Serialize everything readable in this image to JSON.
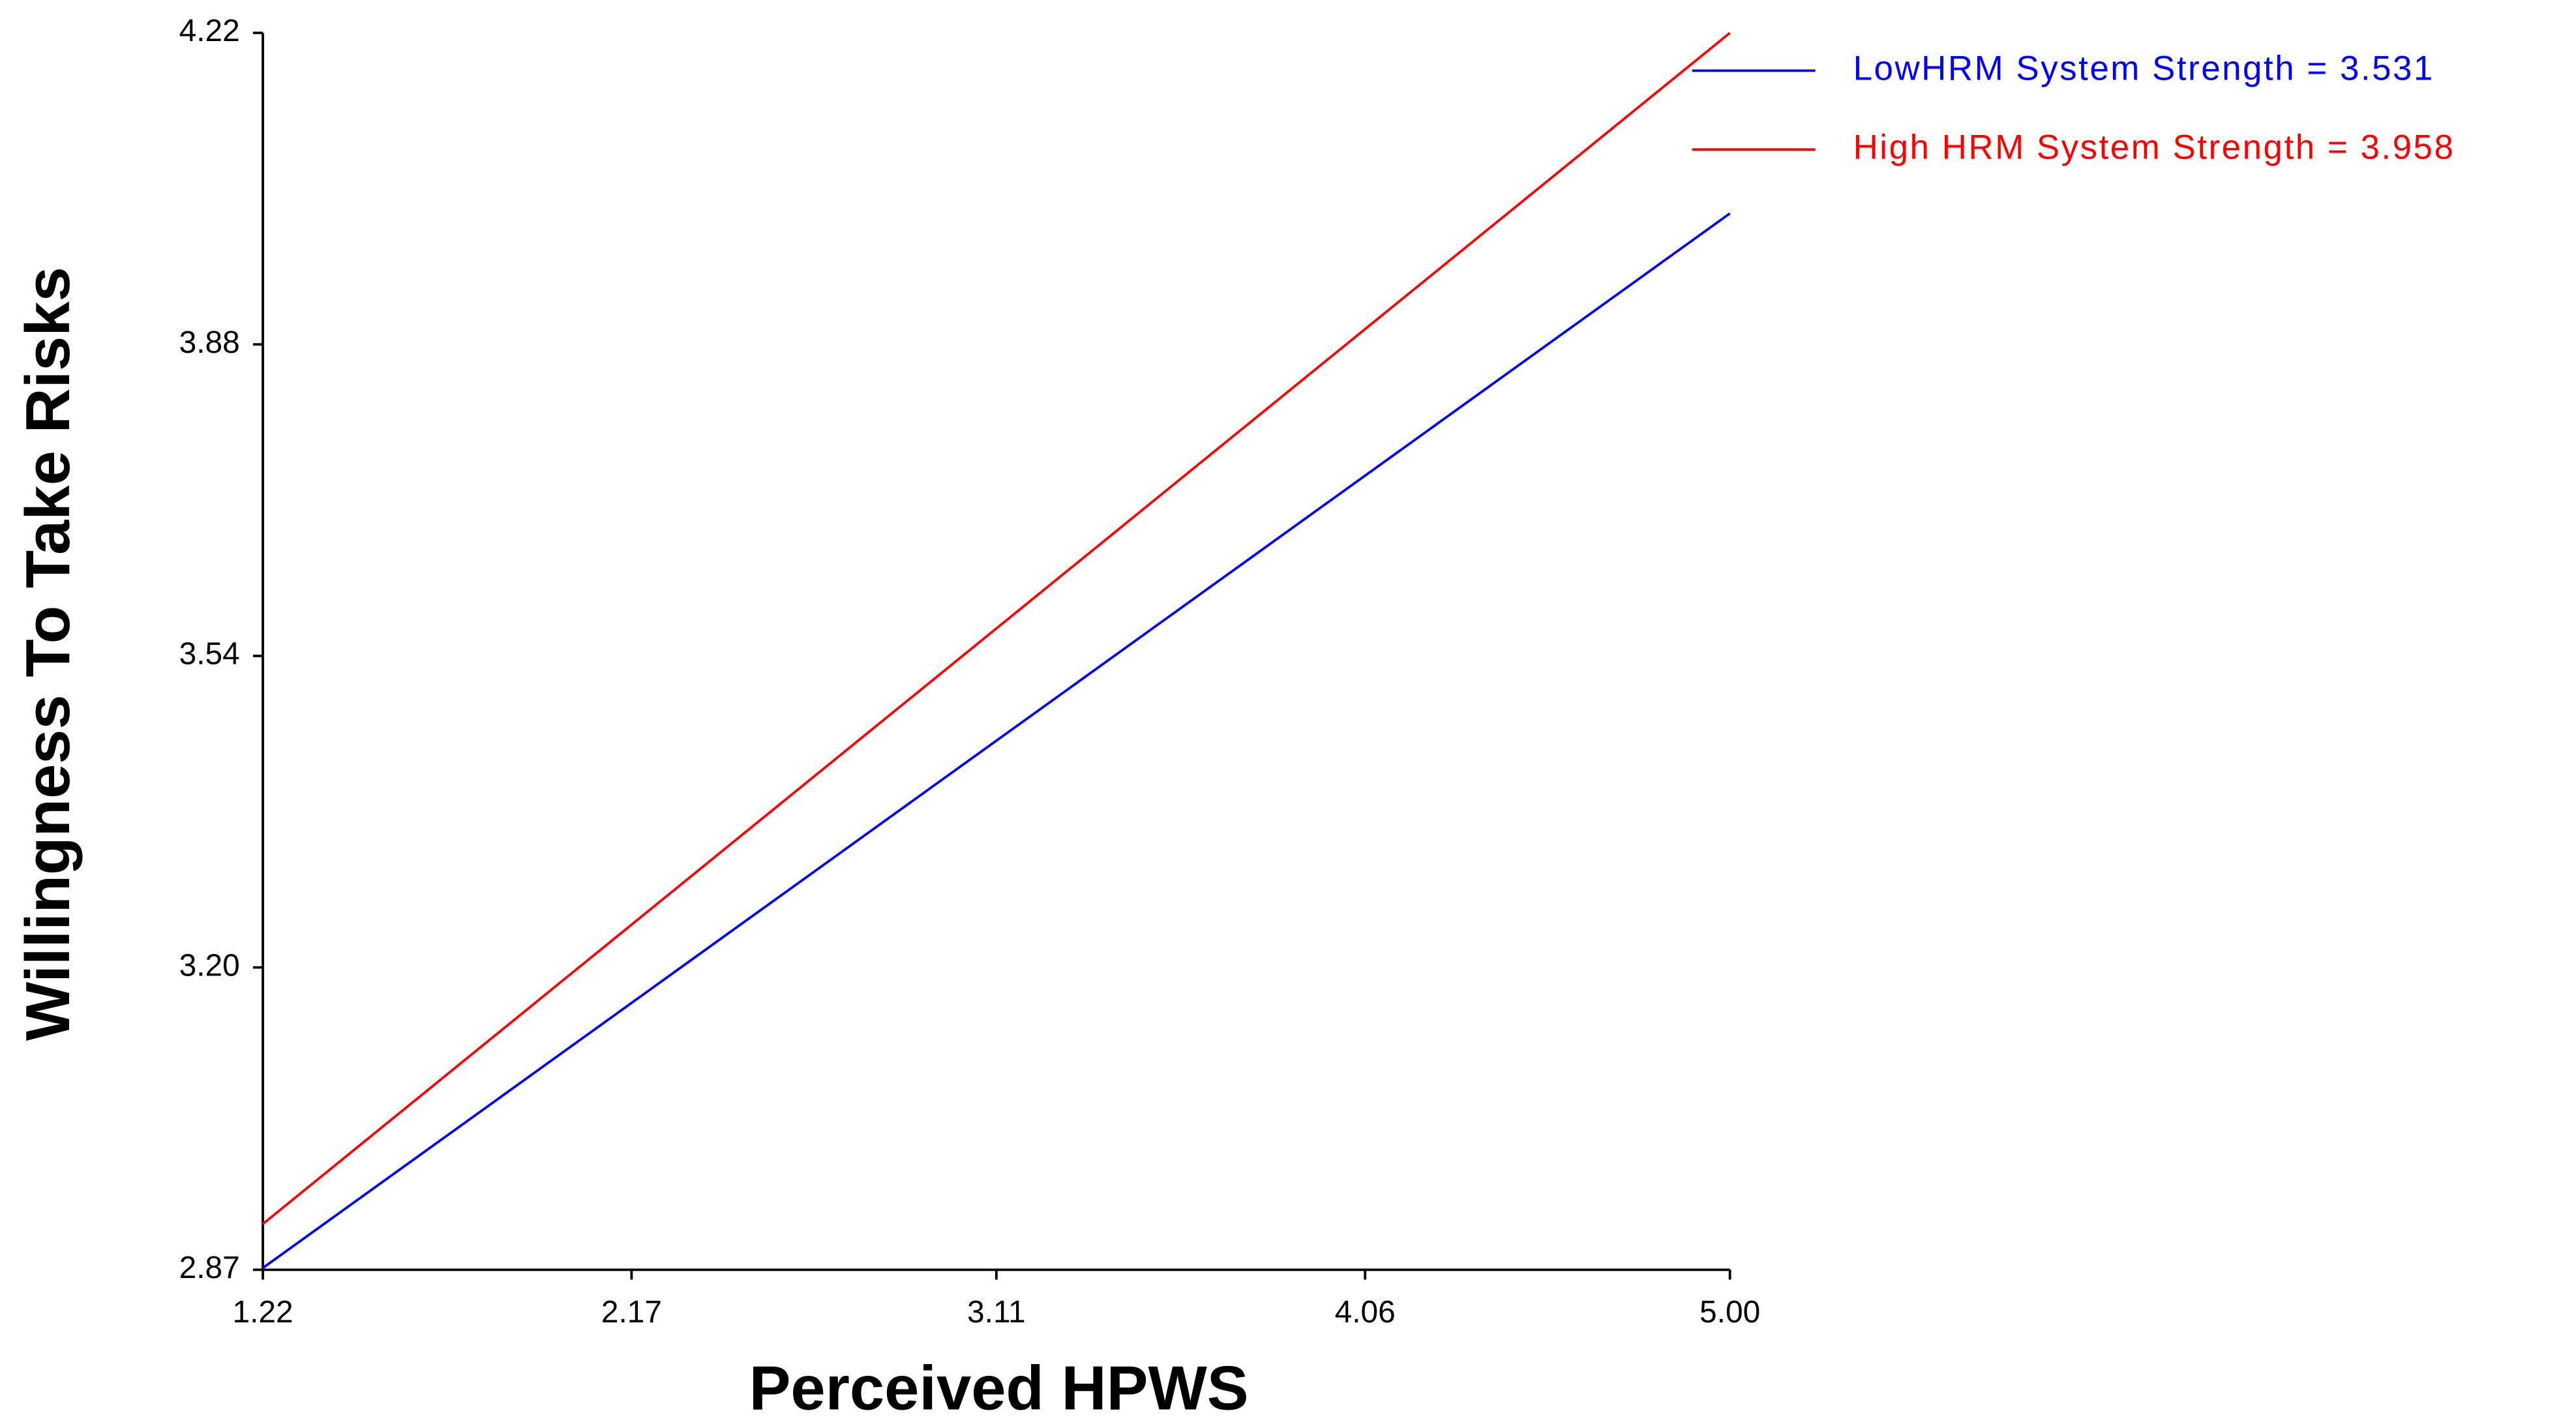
{
  "chart_data": {
    "type": "line",
    "x_label": "Perceived HPWS",
    "y_label": "Willingness To Take Risks",
    "x": [
      1.22,
      5.0
    ],
    "series": [
      {
        "name": "LowHRM System Strength = 3.531",
        "color": "#0000ff",
        "values": [
          2.872,
          4.023
        ]
      },
      {
        "name": "High HRM System Strength = 3.958",
        "color": "#ff0000",
        "values": [
          2.92,
          4.22
        ]
      }
    ],
    "xlim": [
      1.22,
      5.0
    ],
    "ylim": [
      2.87,
      4.22
    ],
    "xticks": [
      1.22,
      2.17,
      3.11,
      4.06,
      {
        "value": 5.0,
        "label": "5.00"
      }
    ],
    "yticks": [
      2.87,
      {
        "value": 3.2,
        "label": "3.20"
      },
      3.54,
      3.88,
      4.22
    ],
    "legend": "top-right",
    "grid": false
  }
}
